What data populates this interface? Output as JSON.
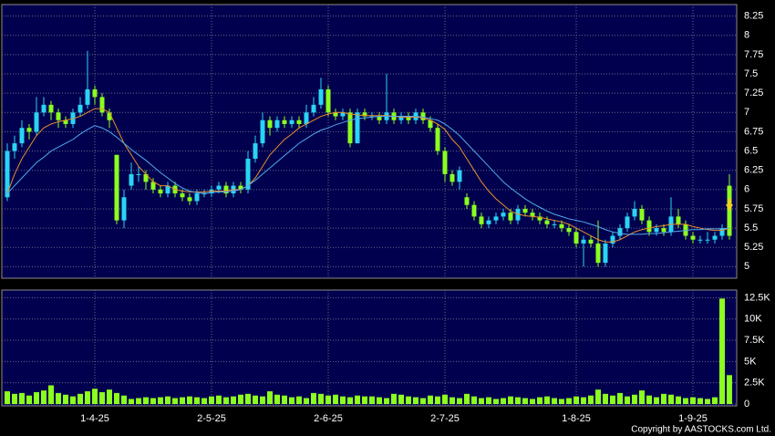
{
  "chart_data": {
    "type": "candlestick",
    "credit": "Copyright by AASTOCKS.com Ltd.",
    "grid": true,
    "up_color": "#2ad4f4",
    "down_color": "#8cff1e",
    "categories": [
      null,
      null,
      null,
      null,
      null,
      null,
      null,
      null,
      null,
      null,
      null,
      null,
      "1-4-25",
      null,
      null,
      null,
      null,
      null,
      null,
      null,
      null,
      null,
      null,
      null,
      null,
      null,
      null,
      null,
      "2-5-25",
      null,
      null,
      null,
      null,
      null,
      null,
      null,
      null,
      null,
      null,
      null,
      null,
      null,
      null,
      null,
      "2-6-25",
      null,
      null,
      null,
      null,
      null,
      null,
      null,
      null,
      null,
      null,
      null,
      null,
      null,
      null,
      null,
      "2-7-25",
      null,
      null,
      null,
      null,
      null,
      null,
      null,
      null,
      null,
      null,
      null,
      null,
      null,
      null,
      null,
      null,
      null,
      "1-8-25",
      null,
      null,
      null,
      null,
      null,
      null,
      null,
      null,
      null,
      null,
      null,
      null,
      null,
      null,
      null,
      "1-9-25",
      null,
      null,
      null,
      null,
      null
    ],
    "open": [
      5.9,
      6.5,
      6.6,
      6.8,
      6.75,
      7.0,
      7.1,
      7.0,
      6.9,
      6.85,
      7.0,
      7.1,
      7.3,
      7.2,
      7.0,
      6.45,
      5.6,
      6.05,
      6.2,
      6.2,
      6.1,
      6.0,
      5.95,
      6.05,
      5.95,
      5.9,
      5.85,
      5.95,
      5.95,
      6.0,
      6.05,
      5.95,
      6.05,
      6.0,
      6.4,
      6.6,
      6.9,
      6.8,
      6.9,
      6.85,
      6.9,
      6.85,
      7.0,
      7.1,
      7.3,
      7.0,
      6.95,
      7.0,
      6.6,
      7.0,
      6.95,
      6.95,
      6.9,
      7.0,
      6.9,
      6.95,
      6.9,
      7.0,
      6.9,
      6.8,
      6.5,
      6.2,
      6.1,
      5.9,
      5.8,
      5.65,
      5.55,
      5.6,
      5.65,
      5.7,
      5.6,
      5.75,
      5.7,
      5.65,
      5.6,
      5.55,
      5.55,
      5.5,
      5.45,
      5.3,
      5.35,
      5.3,
      5.05,
      5.3,
      5.4,
      5.5,
      5.65,
      5.75,
      5.6,
      5.45,
      5.5,
      5.45,
      5.65,
      5.55,
      5.4,
      5.35,
      5.35,
      5.35,
      5.4,
      6.05
    ],
    "high": [
      6.6,
      6.7,
      6.9,
      6.85,
      7.2,
      7.2,
      7.15,
      7.05,
      6.95,
      7.05,
      7.2,
      7.8,
      7.35,
      7.25,
      7.05,
      6.45,
      6.0,
      6.35,
      6.3,
      6.25,
      6.15,
      6.05,
      6.1,
      6.1,
      6.0,
      5.95,
      6.0,
      6.0,
      6.05,
      6.1,
      6.1,
      6.1,
      6.1,
      6.5,
      6.7,
      7.0,
      6.95,
      6.95,
      6.95,
      6.95,
      6.95,
      7.1,
      7.2,
      7.45,
      7.35,
      7.05,
      7.05,
      7.05,
      7.05,
      7.05,
      7.0,
      7.0,
      7.5,
      7.05,
      7.0,
      7.0,
      7.05,
      7.05,
      6.95,
      6.85,
      6.55,
      6.25,
      6.3,
      5.95,
      5.85,
      5.7,
      5.65,
      5.7,
      5.75,
      5.75,
      5.8,
      5.8,
      5.75,
      5.7,
      5.65,
      5.6,
      5.6,
      5.55,
      5.5,
      5.4,
      5.4,
      5.6,
      5.35,
      5.45,
      5.55,
      5.7,
      5.85,
      5.8,
      5.65,
      5.55,
      5.55,
      5.9,
      5.75,
      5.6,
      5.45,
      5.4,
      5.45,
      5.45,
      5.55,
      6.2
    ],
    "low": [
      5.85,
      6.4,
      6.55,
      6.65,
      6.7,
      6.95,
      6.9,
      6.8,
      6.8,
      6.8,
      6.95,
      7.05,
      7.1,
      6.95,
      6.8,
      5.55,
      5.5,
      6.0,
      6.1,
      6.0,
      5.95,
      5.9,
      5.9,
      5.9,
      5.85,
      5.8,
      5.8,
      5.9,
      5.9,
      5.95,
      5.9,
      5.9,
      5.95,
      5.95,
      6.35,
      6.55,
      6.7,
      6.75,
      6.8,
      6.8,
      6.8,
      6.8,
      6.95,
      7.05,
      6.95,
      6.9,
      6.9,
      6.55,
      6.6,
      6.9,
      6.9,
      6.85,
      6.85,
      6.85,
      6.85,
      6.85,
      6.85,
      6.85,
      6.75,
      6.45,
      6.1,
      6.05,
      6.0,
      5.75,
      5.6,
      5.5,
      5.5,
      5.55,
      5.6,
      5.55,
      5.55,
      5.65,
      5.6,
      5.55,
      5.5,
      5.5,
      5.45,
      5.4,
      5.25,
      5.0,
      5.25,
      5.0,
      5.0,
      5.25,
      5.35,
      5.45,
      5.6,
      5.55,
      5.4,
      5.4,
      5.4,
      5.4,
      5.5,
      5.35,
      5.3,
      5.3,
      5.3,
      5.3,
      5.35,
      5.35
    ],
    "close": [
      6.5,
      6.6,
      6.8,
      6.75,
      7.0,
      7.1,
      7.0,
      6.9,
      6.85,
      7.0,
      7.1,
      7.3,
      7.2,
      7.0,
      6.9,
      5.6,
      5.9,
      6.2,
      6.2,
      6.1,
      6.0,
      5.95,
      6.05,
      5.95,
      5.9,
      5.85,
      5.95,
      5.95,
      6.0,
      6.05,
      5.95,
      6.05,
      6.0,
      6.4,
      6.6,
      6.9,
      6.8,
      6.9,
      6.85,
      6.9,
      6.85,
      7.0,
      7.1,
      7.3,
      7.0,
      6.95,
      7.0,
      6.6,
      7.0,
      6.95,
      6.95,
      6.9,
      7.0,
      6.9,
      6.95,
      6.9,
      7.0,
      6.9,
      6.8,
      6.5,
      6.2,
      6.1,
      6.25,
      5.8,
      5.65,
      5.55,
      5.6,
      5.65,
      5.7,
      5.6,
      5.75,
      5.7,
      5.65,
      5.6,
      5.55,
      5.55,
      5.5,
      5.45,
      5.3,
      5.35,
      5.3,
      5.05,
      5.3,
      5.4,
      5.5,
      5.65,
      5.75,
      5.6,
      5.45,
      5.5,
      5.45,
      5.65,
      5.55,
      5.4,
      5.35,
      5.35,
      5.35,
      5.4,
      5.5,
      5.4
    ],
    "ylim": [
      4.85,
      8.4
    ],
    "yticks": [
      5,
      5.25,
      5.5,
      5.75,
      6,
      6.25,
      6.5,
      6.75,
      7,
      7.25,
      7.5,
      7.75,
      8,
      8.25
    ],
    "overlays": [
      {
        "color": "#e8902c",
        "values": [
          5.95,
          6.2,
          6.4,
          6.55,
          6.7,
          6.8,
          6.85,
          6.88,
          6.9,
          6.92,
          6.95,
          7.0,
          7.05,
          7.05,
          7.0,
          6.8,
          6.6,
          6.45,
          6.3,
          6.2,
          6.1,
          6.05,
          6.05,
          6.0,
          5.98,
          5.97,
          5.97,
          5.97,
          5.98,
          5.98,
          5.98,
          6.0,
          6.0,
          6.05,
          6.15,
          6.3,
          6.45,
          6.55,
          6.65,
          6.72,
          6.8,
          6.85,
          6.9,
          6.95,
          6.98,
          7.0,
          7.0,
          6.98,
          6.97,
          6.96,
          6.96,
          6.96,
          6.96,
          6.95,
          6.94,
          6.94,
          6.94,
          6.93,
          6.9,
          6.85,
          6.78,
          6.65,
          6.55,
          6.4,
          6.25,
          6.1,
          5.98,
          5.88,
          5.8,
          5.72,
          5.68,
          5.66,
          5.65,
          5.64,
          5.62,
          5.6,
          5.58,
          5.55,
          5.5,
          5.45,
          5.4,
          5.35,
          5.32,
          5.32,
          5.35,
          5.4,
          5.45,
          5.48,
          5.5,
          5.52,
          5.53,
          5.55,
          5.55,
          5.55,
          5.52,
          5.5,
          5.48,
          5.47,
          5.47,
          5.5
        ]
      },
      {
        "color": "#52aaee",
        "values": [
          5.95,
          6.05,
          6.15,
          6.25,
          6.35,
          6.42,
          6.5,
          6.55,
          6.6,
          6.65,
          6.72,
          6.78,
          6.83,
          6.8,
          6.75,
          6.68,
          6.6,
          6.52,
          6.45,
          6.38,
          6.3,
          6.22,
          6.15,
          6.08,
          6.02,
          5.98,
          5.96,
          5.95,
          5.96,
          5.97,
          5.97,
          5.98,
          6.0,
          6.05,
          6.12,
          6.2,
          6.28,
          6.36,
          6.44,
          6.52,
          6.6,
          6.66,
          6.72,
          6.77,
          6.8,
          6.84,
          6.87,
          6.9,
          6.92,
          6.93,
          6.94,
          6.95,
          6.95,
          6.95,
          6.95,
          6.95,
          6.95,
          6.94,
          6.92,
          6.9,
          6.85,
          6.78,
          6.7,
          6.6,
          6.5,
          6.4,
          6.3,
          6.2,
          6.1,
          6.02,
          5.95,
          5.88,
          5.82,
          5.77,
          5.72,
          5.68,
          5.65,
          5.62,
          5.6,
          5.58,
          5.55,
          5.52,
          5.48,
          5.45,
          5.43,
          5.42,
          5.42,
          5.42,
          5.43,
          5.43,
          5.44,
          5.45,
          5.46,
          5.47,
          5.48,
          5.48,
          5.49,
          5.49,
          5.49,
          5.5
        ]
      }
    ],
    "volume": {
      "color": "#8cff1e",
      "values": [
        1500,
        1200,
        1300,
        1000,
        1400,
        1600,
        2200,
        1300,
        1100,
        900,
        1200,
        1500,
        1800,
        1400,
        1700,
        1300,
        1000,
        600,
        700,
        800,
        700,
        800,
        900,
        700,
        800,
        900,
        800,
        700,
        900,
        1000,
        800,
        900,
        1100,
        1200,
        1000,
        900,
        1500,
        1100,
        1000,
        800,
        900,
        700,
        1300,
        1200,
        1000,
        1100,
        900,
        800,
        1000,
        900,
        900,
        800,
        700,
        1200,
        1100,
        900,
        800,
        700,
        1000,
        900,
        1100,
        800,
        700,
        1200,
        900,
        700,
        800,
        600,
        700,
        900,
        800,
        700,
        600,
        800,
        900,
        700,
        600,
        700,
        900,
        800,
        1000,
        1700,
        1200,
        1000,
        1300,
        900,
        1100,
        1600,
        1000,
        800,
        1200,
        1100,
        900,
        700,
        800,
        700,
        600,
        800,
        12400,
        3400
      ],
      "ylim": [
        0,
        13400
      ],
      "yticks": [
        0,
        {
          "value": 2500,
          "label": "2.5K"
        },
        {
          "value": 5000,
          "label": "5K"
        },
        {
          "value": 7500,
          "label": "7.5K"
        },
        {
          "value": 10000,
          "label": "10K"
        },
        {
          "value": 12500,
          "label": "12.5K"
        }
      ]
    }
  }
}
